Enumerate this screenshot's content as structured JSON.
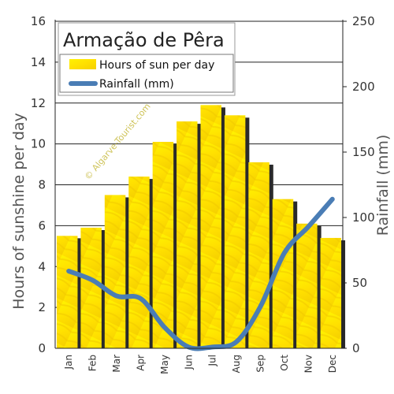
{
  "chart_data": {
    "type": "bar",
    "title": "Armação de Pêra",
    "watermark": "© Algarve-Tourist.com",
    "categories": [
      "Jan",
      "Feb",
      "Mar",
      "Apr",
      "May",
      "Jun",
      "Jul",
      "Aug",
      "Sep",
      "Oct",
      "Nov",
      "Dec"
    ],
    "series": [
      {
        "name": "Hours of sun per day",
        "kind": "bar",
        "axis": "left",
        "color": "#FFE800",
        "values": [
          5.5,
          5.9,
          7.5,
          8.4,
          10.1,
          11.1,
          11.9,
          11.4,
          9.1,
          7.3,
          6.1,
          5.4
        ]
      },
      {
        "name": "Rainfall (mm)",
        "kind": "line",
        "axis": "right",
        "color": "#4A7DB5",
        "values": [
          59,
          52,
          40,
          38,
          16,
          1,
          1,
          5,
          32,
          73,
          93,
          114
        ]
      }
    ],
    "ylabel": "Hours of sunshine per day",
    "ylabel_right": "Rainfall (mm)",
    "ylim": [
      0,
      16
    ],
    "ylim_right": [
      0,
      250
    ],
    "yticks": [
      "0",
      "2",
      "4",
      "6",
      "8",
      "10",
      "12",
      "14",
      "16"
    ],
    "yticks_right": [
      "0",
      "50",
      "100",
      "150",
      "200",
      "250"
    ],
    "grid": true,
    "legend": "top-left"
  }
}
